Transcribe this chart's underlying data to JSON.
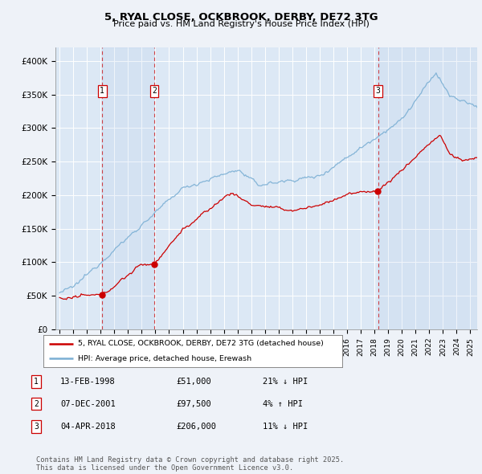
{
  "title_line1": "5, RYAL CLOSE, OCKBROOK, DERBY, DE72 3TG",
  "title_line2": "Price paid vs. HM Land Registry's House Price Index (HPI)",
  "background_color": "#eef2f8",
  "plot_background": "#dce8f5",
  "ylim": [
    0,
    420000
  ],
  "yticks": [
    0,
    50000,
    100000,
    150000,
    200000,
    250000,
    300000,
    350000,
    400000
  ],
  "ytick_labels": [
    "£0",
    "£50K",
    "£100K",
    "£150K",
    "£200K",
    "£250K",
    "£300K",
    "£350K",
    "£400K"
  ],
  "xlim_start": 1994.7,
  "xlim_end": 2025.5,
  "transactions": [
    {
      "label": "1",
      "date": 1998.12,
      "price": 51000
    },
    {
      "label": "2",
      "date": 2001.92,
      "price": 97500
    },
    {
      "label": "3",
      "date": 2018.27,
      "price": 206000
    }
  ],
  "transaction_info": [
    {
      "num": "1",
      "date": "13-FEB-1998",
      "price": "£51,000",
      "hpi": "21% ↓ HPI"
    },
    {
      "num": "2",
      "date": "07-DEC-2001",
      "price": "£97,500",
      "hpi": "4% ↑ HPI"
    },
    {
      "num": "3",
      "date": "04-APR-2018",
      "price": "£206,000",
      "hpi": "11% ↓ HPI"
    }
  ],
  "legend_entries": [
    "5, RYAL CLOSE, OCKBROOK, DERBY, DE72 3TG (detached house)",
    "HPI: Average price, detached house, Erewash"
  ],
  "price_paid_color": "#cc0000",
  "hpi_color": "#7bafd4",
  "vline_color": "#cc0000",
  "footer": "Contains HM Land Registry data © Crown copyright and database right 2025.\nThis data is licensed under the Open Government Licence v3.0."
}
